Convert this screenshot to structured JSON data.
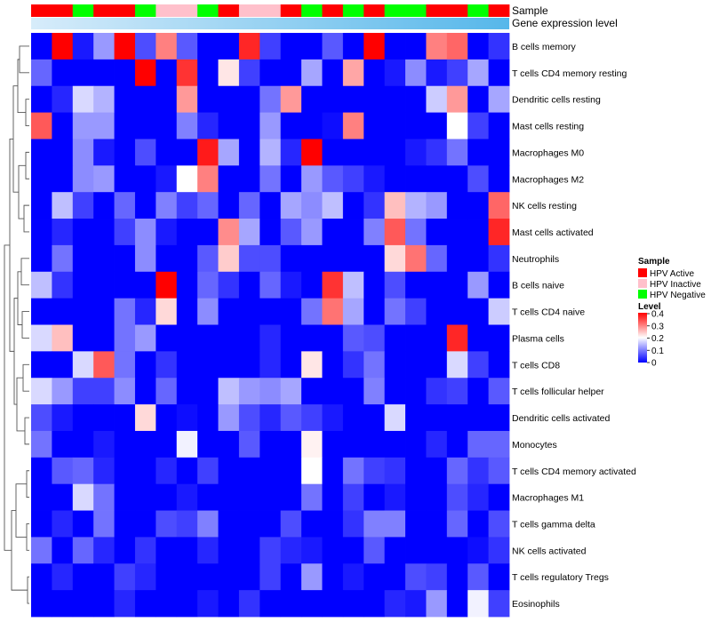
{
  "chart_data": {
    "type": "heatmap",
    "title": "",
    "annotation_labels": {
      "sample": "Sample",
      "gene_expression": "Gene expression level"
    },
    "sample_groups": [
      "A",
      "A",
      "N",
      "A",
      "A",
      "N",
      "I",
      "I",
      "N",
      "A",
      "I",
      "I",
      "A",
      "N",
      "A",
      "N",
      "A",
      "N",
      "N",
      "A",
      "A",
      "N",
      "A"
    ],
    "rows": [
      "B cells memory",
      "T cells CD4 memory resting",
      "Dendritic cells resting",
      "Mast cells resting",
      "Macrophages M0",
      "Macrophages M2",
      "NK cells resting",
      "Mast cells activated",
      "Neutrophils",
      "B cells naive",
      "T cells CD4 naive",
      "Plasma cells",
      "T cells CD8",
      "T cells follicular helper",
      "Dendritic cells activated",
      "Monocytes",
      "T cells CD4 memory activated",
      "Macrophages M1",
      "T cells gamma delta",
      "NK cells activated",
      "T cells regulatory  Tregs",
      "Eosinophils"
    ],
    "values": [
      [
        0.0,
        0.4,
        0.02,
        0.12,
        0.4,
        0.06,
        0.3,
        0.07,
        0.0,
        0.0,
        0.37,
        0.05,
        0.0,
        0.0,
        0.07,
        0.0,
        0.4,
        0.0,
        0.0,
        0.3,
        0.32,
        0.0,
        0.04
      ],
      [
        0.08,
        0.0,
        0.0,
        0.0,
        0.0,
        0.4,
        0.0,
        0.36,
        0.0,
        0.22,
        0.05,
        0.0,
        0.0,
        0.13,
        0.0,
        0.27,
        0.0,
        0.02,
        0.11,
        0.02,
        0.05,
        0.13,
        0.0
      ],
      [
        0.0,
        0.03,
        0.17,
        0.14,
        0.0,
        0.0,
        0.0,
        0.28,
        0.0,
        0.0,
        0.0,
        0.09,
        0.28,
        0.0,
        0.0,
        0.0,
        0.0,
        0.0,
        0.0,
        0.16,
        0.28,
        0.0,
        0.13
      ],
      [
        0.33,
        0.0,
        0.12,
        0.12,
        0.0,
        0.0,
        0.0,
        0.1,
        0.03,
        0.0,
        0.0,
        0.12,
        0.0,
        0.0,
        0.01,
        0.3,
        0.0,
        0.0,
        0.0,
        0.0,
        0.2,
        0.05,
        0.0
      ],
      [
        0.0,
        0.0,
        0.11,
        0.02,
        0.0,
        0.06,
        0.0,
        0.0,
        0.38,
        0.13,
        0.0,
        0.14,
        0.03,
        0.4,
        0.0,
        0.0,
        0.0,
        0.0,
        0.02,
        0.04,
        0.09,
        0.0,
        0.0
      ],
      [
        0.0,
        0.0,
        0.11,
        0.12,
        0.0,
        0.0,
        0.02,
        0.2,
        0.3,
        0.0,
        0.0,
        0.09,
        0.0,
        0.12,
        0.07,
        0.05,
        0.02,
        0.0,
        0.0,
        0.0,
        0.0,
        0.06,
        0.0
      ],
      [
        0.0,
        0.15,
        0.05,
        0.0,
        0.08,
        0.0,
        0.1,
        0.05,
        0.08,
        0.0,
        0.08,
        0.0,
        0.13,
        0.11,
        0.15,
        0.0,
        0.04,
        0.25,
        0.14,
        0.12,
        0.0,
        0.0,
        0.32
      ],
      [
        0.0,
        0.03,
        0.0,
        0.0,
        0.05,
        0.11,
        0.02,
        0.0,
        0.0,
        0.29,
        0.13,
        0.0,
        0.07,
        0.12,
        0.0,
        0.0,
        0.1,
        0.33,
        0.09,
        0.0,
        0.0,
        0.0,
        0.37
      ],
      [
        0.0,
        0.09,
        0.0,
        0.0,
        0.0,
        0.11,
        0.0,
        0.0,
        0.07,
        0.24,
        0.06,
        0.06,
        0.0,
        0.0,
        0.0,
        0.0,
        0.0,
        0.23,
        0.31,
        0.08,
        0.0,
        0.0,
        0.04
      ],
      [
        0.15,
        0.04,
        0.0,
        0.0,
        0.0,
        0.0,
        0.4,
        0.0,
        0.08,
        0.04,
        0.0,
        0.08,
        0.02,
        0.0,
        0.36,
        0.15,
        0.0,
        0.06,
        0.0,
        0.0,
        0.0,
        0.12,
        0.0
      ],
      [
        0.0,
        0.0,
        0.0,
        0.0,
        0.09,
        0.03,
        0.23,
        0.0,
        0.11,
        0.0,
        0.0,
        0.0,
        0.0,
        0.09,
        0.31,
        0.13,
        0.0,
        0.09,
        0.05,
        0.0,
        0.0,
        0.0,
        0.16
      ],
      [
        0.17,
        0.25,
        0.0,
        0.0,
        0.09,
        0.12,
        0.0,
        0.0,
        0.0,
        0.0,
        0.0,
        0.03,
        0.0,
        0.0,
        0.0,
        0.07,
        0.06,
        0.0,
        0.0,
        0.0,
        0.37,
        0.0,
        0.0
      ],
      [
        0.0,
        0.0,
        0.17,
        0.33,
        0.09,
        0.0,
        0.04,
        0.0,
        0.0,
        0.0,
        0.0,
        0.03,
        0.0,
        0.22,
        0.0,
        0.04,
        0.09,
        0.0,
        0.0,
        0.0,
        0.17,
        0.05,
        0.0
      ],
      [
        0.17,
        0.12,
        0.05,
        0.05,
        0.11,
        0.0,
        0.08,
        0.0,
        0.0,
        0.15,
        0.12,
        0.11,
        0.13,
        0.0,
        0.0,
        0.0,
        0.1,
        0.0,
        0.0,
        0.04,
        0.05,
        0.0,
        0.07
      ],
      [
        0.06,
        0.02,
        0.0,
        0.0,
        0.0,
        0.23,
        0.0,
        0.01,
        0.0,
        0.12,
        0.06,
        0.03,
        0.07,
        0.05,
        0.02,
        0.0,
        0.0,
        0.17,
        0.0,
        0.0,
        0.0,
        0.0,
        0.0
      ],
      [
        0.09,
        0.0,
        0.0,
        0.02,
        0.0,
        0.0,
        0.0,
        0.19,
        0.0,
        0.0,
        0.07,
        0.0,
        0.0,
        0.21,
        0.0,
        0.0,
        0.0,
        0.0,
        0.0,
        0.03,
        0.0,
        0.08,
        0.08
      ],
      [
        0.0,
        0.07,
        0.08,
        0.03,
        0.0,
        0.0,
        0.03,
        0.0,
        0.05,
        0.0,
        0.0,
        0.0,
        0.0,
        0.2,
        0.0,
        0.09,
        0.05,
        0.04,
        0.0,
        0.0,
        0.08,
        0.04,
        0.07
      ],
      [
        0.0,
        0.0,
        0.17,
        0.09,
        0.0,
        0.0,
        0.0,
        0.02,
        0.0,
        0.0,
        0.0,
        0.0,
        0.0,
        0.09,
        0.0,
        0.05,
        0.0,
        0.02,
        0.0,
        0.0,
        0.06,
        0.03,
        0.0
      ],
      [
        0.0,
        0.03,
        0.0,
        0.09,
        0.0,
        0.0,
        0.06,
        0.05,
        0.1,
        0.0,
        0.0,
        0.0,
        0.06,
        0.0,
        0.0,
        0.04,
        0.1,
        0.1,
        0.0,
        0.0,
        0.08,
        0.0,
        0.06
      ],
      [
        0.09,
        0.0,
        0.08,
        0.03,
        0.0,
        0.04,
        0.0,
        0.0,
        0.03,
        0.0,
        0.0,
        0.05,
        0.03,
        0.02,
        0.0,
        0.0,
        0.07,
        0.0,
        0.0,
        0.0,
        0.0,
        0.01,
        0.04
      ],
      [
        0.0,
        0.03,
        0.0,
        0.0,
        0.05,
        0.03,
        0.0,
        0.0,
        0.0,
        0.0,
        0.0,
        0.05,
        0.0,
        0.12,
        0.0,
        0.02,
        0.0,
        0.0,
        0.06,
        0.05,
        0.0,
        0.07,
        0.0
      ],
      [
        0.0,
        0.0,
        0.0,
        0.0,
        0.03,
        0.0,
        0.0,
        0.0,
        0.02,
        0.0,
        0.04,
        0.0,
        0.0,
        0.0,
        0.0,
        0.0,
        0.0,
        0.03,
        0.02,
        0.12,
        0.0,
        0.19,
        0.05
      ]
    ],
    "legend": {
      "sample_title": "Sample",
      "groups": [
        {
          "key": "A",
          "name": "HPV Active",
          "color": "#ff0000"
        },
        {
          "key": "I",
          "name": "HPV Inactive",
          "color": "#ffc0cb"
        },
        {
          "key": "N",
          "name": "HPV Negative",
          "color": "#00ff00"
        }
      ],
      "level_title": "Level",
      "level_ticks": [
        "0.4",
        "0.3",
        "0.2",
        "0.1",
        "0"
      ],
      "level_range": [
        0,
        0.4
      ]
    },
    "colors": {
      "low": "#0000ff",
      "mid": "#ffffff",
      "high": "#ff0000",
      "gene_bar_left": "#d7ecfa",
      "gene_bar_right": "#56b7ea"
    }
  }
}
